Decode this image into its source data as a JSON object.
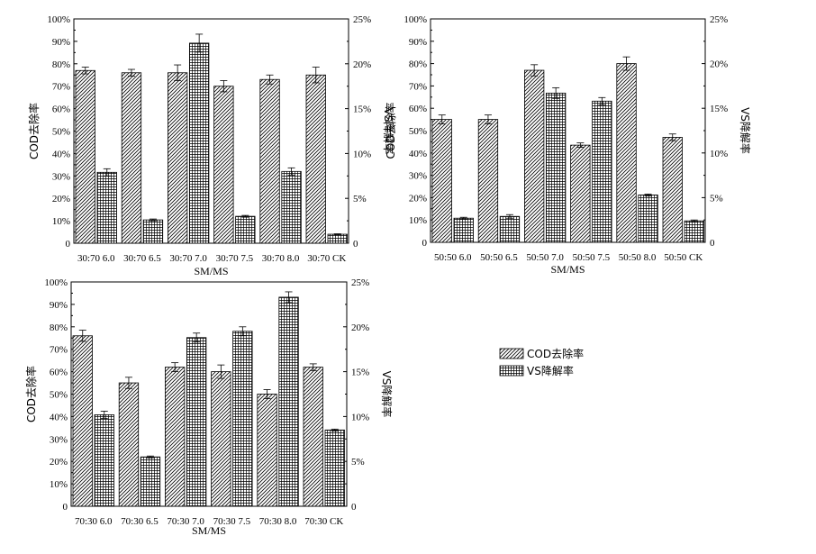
{
  "chart_data": [
    {
      "type": "bar",
      "categories": [
        "30:70 6.0",
        "30:70 6.5",
        "30:70 7.0",
        "30:70 7.5",
        "30:70 8.0",
        "30:70 CK"
      ],
      "xlabel": "SM/MS",
      "ylabel": "COD去除率",
      "y2label": "VS降解率",
      "ylim": [
        0,
        100
      ],
      "y2lim": [
        0,
        25
      ],
      "yticks": [
        "0",
        "10%",
        "20%",
        "30%",
        "40%",
        "50%",
        "60%",
        "70%",
        "80%",
        "90%",
        "100%"
      ],
      "y2ticks": [
        "0",
        "5%",
        "10%",
        "15%",
        "20%",
        "25%"
      ],
      "series": [
        {
          "name": "COD去除率",
          "axis": "left",
          "values": [
            77,
            76,
            76,
            70,
            73,
            75
          ],
          "errors": [
            1.5,
            1.5,
            3.5,
            2.5,
            2,
            3.5
          ]
        },
        {
          "name": "VS降解率",
          "axis": "right",
          "values": [
            7.9,
            2.6,
            22.3,
            3.0,
            8.0,
            1.0
          ],
          "errors": [
            0.4,
            0.1,
            1.0,
            0.1,
            0.4,
            0.05
          ]
        }
      ]
    },
    {
      "type": "bar",
      "categories": [
        "50:50 6.0",
        "50:50 6.5",
        "50:50 7.0",
        "50:50 7.5",
        "50:50 8.0",
        "50:50 CK"
      ],
      "xlabel": "SM/MS",
      "ylabel": "COD去除率",
      "y2label": "VS降解率",
      "ylim": [
        0,
        100
      ],
      "y2lim": [
        0,
        25
      ],
      "yticks": [
        "0",
        "10%",
        "20%",
        "30%",
        "40%",
        "50%",
        "60%",
        "70%",
        "80%",
        "90%",
        "100%"
      ],
      "y2ticks": [
        "0",
        "5%",
        "10%",
        "15%",
        "20%",
        "25%"
      ],
      "series": [
        {
          "name": "COD去除率",
          "axis": "left",
          "values": [
            55,
            55,
            77,
            43.5,
            80,
            47
          ],
          "errors": [
            2,
            2,
            2.5,
            1,
            3,
            1.5
          ]
        },
        {
          "name": "VS降解率",
          "axis": "right",
          "values": [
            2.7,
            2.9,
            16.7,
            15.8,
            5.3,
            2.4
          ],
          "errors": [
            0.1,
            0.2,
            0.6,
            0.4,
            0.1,
            0.1
          ]
        }
      ]
    },
    {
      "type": "bar",
      "categories": [
        "70:30 6.0",
        "70:30 6.5",
        "70:30 7.0",
        "70:30 7.5",
        "70:30 8.0",
        "70:30 CK"
      ],
      "xlabel": "SM/MS",
      "ylabel": "COD去除率",
      "y2label": "VS降解率",
      "ylim": [
        0,
        100
      ],
      "y2lim": [
        0,
        25
      ],
      "yticks": [
        "0",
        "10%",
        "20%",
        "30%",
        "40%",
        "50%",
        "60%",
        "70%",
        "80%",
        "90%",
        "100%"
      ],
      "y2ticks": [
        "0",
        "5%",
        "10%",
        "15%",
        "20%",
        "25%"
      ],
      "series": [
        {
          "name": "COD去除率",
          "axis": "left",
          "values": [
            76,
            55,
            62,
            60,
            50,
            62
          ],
          "errors": [
            2.5,
            2.5,
            2,
            3,
            2,
            1.5
          ]
        },
        {
          "name": "VS降解率",
          "axis": "right",
          "values": [
            10.2,
            5.5,
            18.8,
            19.5,
            23.3,
            8.5
          ],
          "errors": [
            0.4,
            0.1,
            0.5,
            0.5,
            0.6,
            0.1
          ]
        }
      ]
    }
  ],
  "legend": {
    "position": "right",
    "items": [
      {
        "label": "COD去除率",
        "pattern": "diagonal"
      },
      {
        "label": "VS降解率",
        "pattern": "grid"
      }
    ]
  }
}
